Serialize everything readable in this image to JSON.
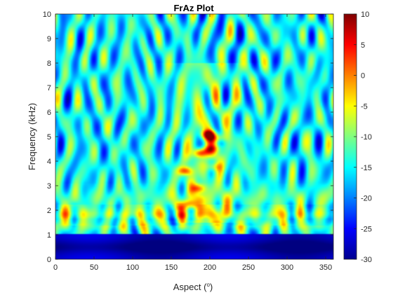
{
  "chart_data": {
    "type": "heatmap",
    "title": "FrAz Plot",
    "xlabel_text": "Aspect (",
    "xlabel_sup": "o",
    "xlabel_close": ")",
    "ylabel": "Frequency (kHz)",
    "xlim": [
      0,
      360
    ],
    "ylim": [
      0,
      10
    ],
    "xticks": [
      0,
      50,
      100,
      150,
      200,
      250,
      300,
      350
    ],
    "yticks": [
      0,
      1,
      2,
      3,
      4,
      5,
      6,
      7,
      8,
      9,
      10
    ],
    "colorbar": {
      "colormap": "jet",
      "range": [
        -30,
        10
      ],
      "ticks": [
        10,
        5,
        0,
        -5,
        -10,
        -15,
        -20,
        -25,
        -30
      ]
    },
    "colors": {
      "jet": [
        "#00008f",
        "#0000ff",
        "#0080ff",
        "#00ffff",
        "#80ff80",
        "#ffff00",
        "#ff8000",
        "#ff0000",
        "#800000"
      ]
    }
  }
}
